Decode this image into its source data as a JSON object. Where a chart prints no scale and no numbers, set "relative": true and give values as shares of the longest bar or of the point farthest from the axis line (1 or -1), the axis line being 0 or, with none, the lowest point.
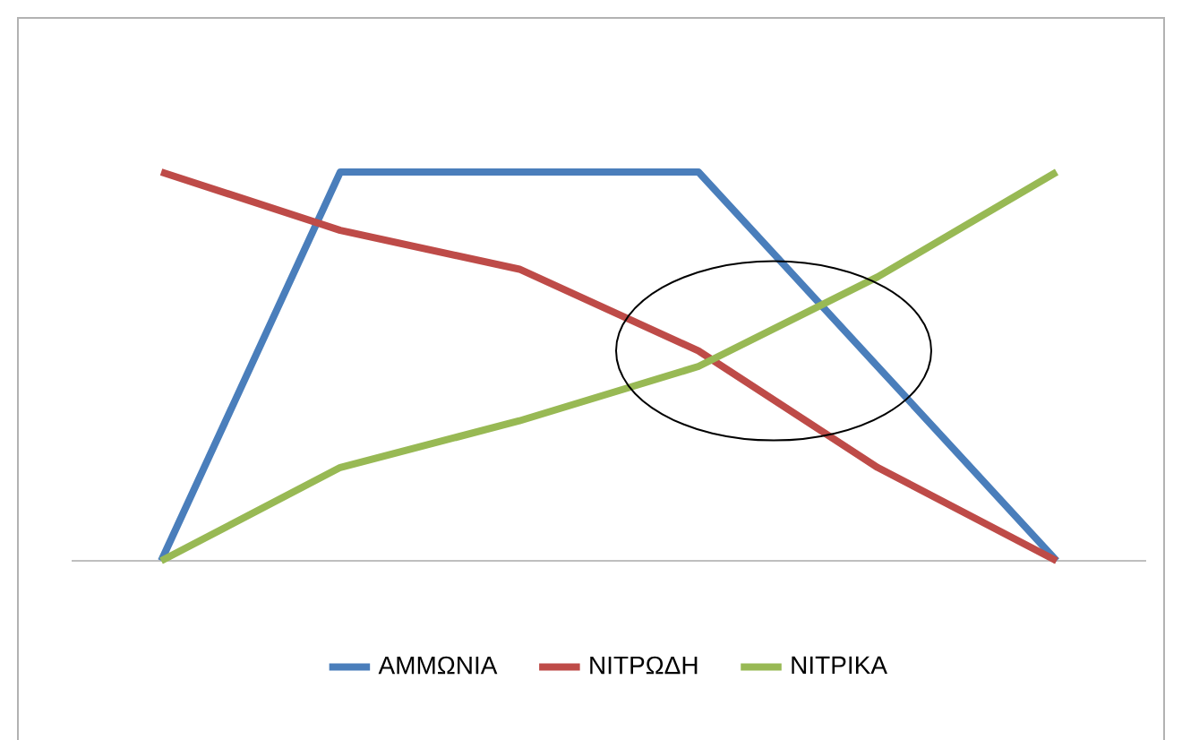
{
  "chart_data": {
    "type": "line",
    "relative": true,
    "legend": "bottom",
    "categories": [
      null,
      null,
      null,
      null,
      null,
      null
    ],
    "series": [
      {
        "name": "ΑΜΜΩΝΙΑ",
        "color": "#4a7ebb",
        "values": [
          0,
          1,
          1,
          1,
          0.5,
          0
        ]
      },
      {
        "name": "ΝΙΤΡΩΔΗ",
        "color": "#be4b48",
        "values": [
          1,
          0.85,
          0.75,
          0.54,
          0.24,
          0
        ]
      },
      {
        "name": "ΝΙΤΡΙΚΑ",
        "color": "#98b954",
        "values": [
          0,
          0.24,
          0.36,
          0.5,
          0.73,
          1
        ]
      }
    ]
  }
}
